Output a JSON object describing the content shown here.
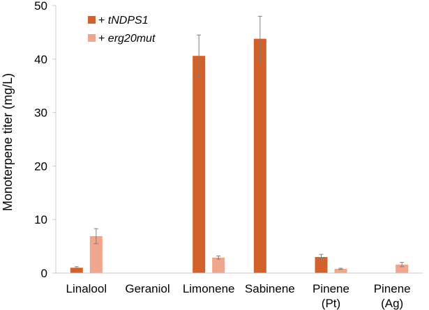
{
  "chart_data": {
    "type": "bar",
    "title": "",
    "xlabel": "",
    "ylabel": "Monoterpene titer (mg/L)",
    "ylim": [
      0,
      50
    ],
    "yticks": [
      0,
      10,
      20,
      30,
      40,
      50
    ],
    "grid": false,
    "legend_position": "top-left",
    "categories": [
      [
        "Linalool"
      ],
      [
        "Geraniol"
      ],
      [
        "Limonene"
      ],
      [
        "Sabinene"
      ],
      [
        "Pinene",
        "(Pt)"
      ],
      [
        "Pinene",
        "(Ag)"
      ]
    ],
    "series": [
      {
        "name": "tNDPS1",
        "legend_prefix": "+ ",
        "color": "#d2622b",
        "values": [
          1.0,
          null,
          40.6,
          43.8,
          3.0,
          null
        ],
        "errors": [
          0.2,
          null,
          3.9,
          4.2,
          0.5,
          null
        ]
      },
      {
        "name": "erg20mut",
        "legend_prefix": "+ ",
        "color": "#f0a58d",
        "values": [
          6.9,
          null,
          2.9,
          null,
          0.8,
          1.6
        ],
        "errors": [
          1.4,
          null,
          0.3,
          null,
          0.1,
          0.4
        ]
      }
    ]
  }
}
